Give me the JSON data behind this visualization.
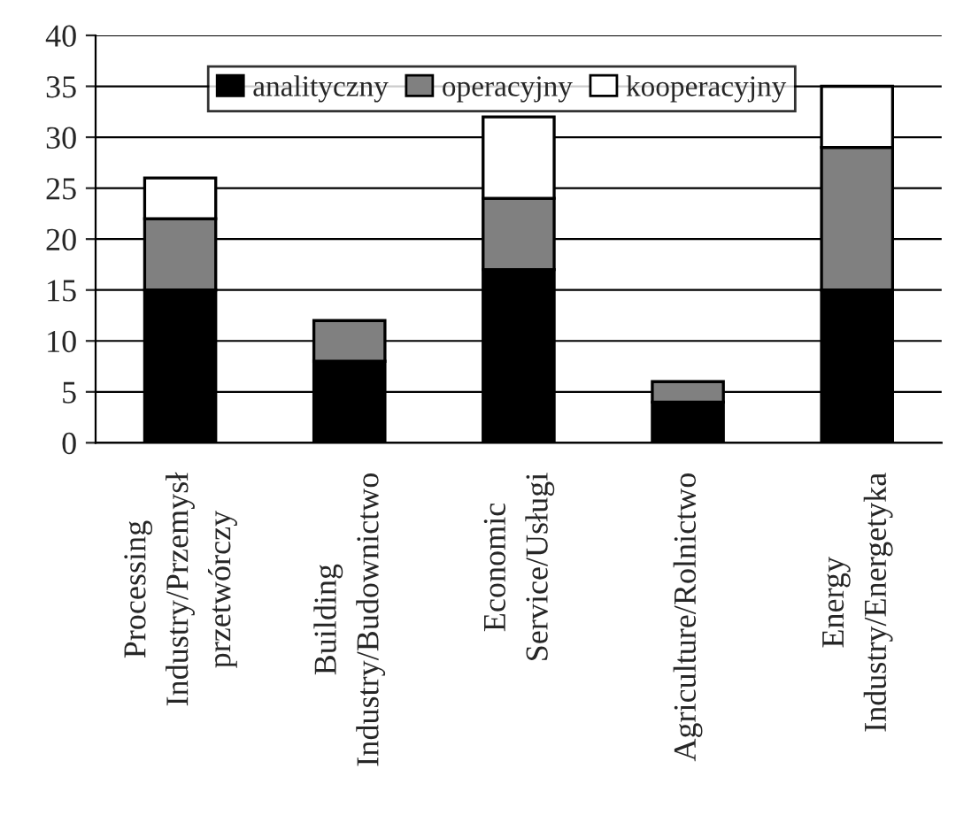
{
  "chart_data": {
    "type": "bar",
    "stacked": true,
    "categories": [
      "Processing\nIndustry/Przemysł\nprzetwórczy",
      "Building\nIndustry/Budownictwo",
      "Economic\nService/Usługi",
      "Agriculture/Rolnictwo",
      "Energy\nIndustry/Energetyka"
    ],
    "series": [
      {
        "name": "analityczny",
        "color": "#000000",
        "values": [
          15,
          8,
          17,
          4,
          15
        ]
      },
      {
        "name": "operacyjny",
        "color": "#808080",
        "values": [
          7,
          4,
          7,
          2,
          14
        ]
      },
      {
        "name": "kooperacyjny",
        "color": "#ffffff",
        "values": [
          4,
          null,
          8,
          null,
          6
        ]
      }
    ],
    "ylim": [
      0,
      40
    ],
    "yticks": [
      0,
      5,
      10,
      15,
      20,
      25,
      30,
      35,
      40
    ],
    "grid": "y",
    "legend": "top"
  }
}
